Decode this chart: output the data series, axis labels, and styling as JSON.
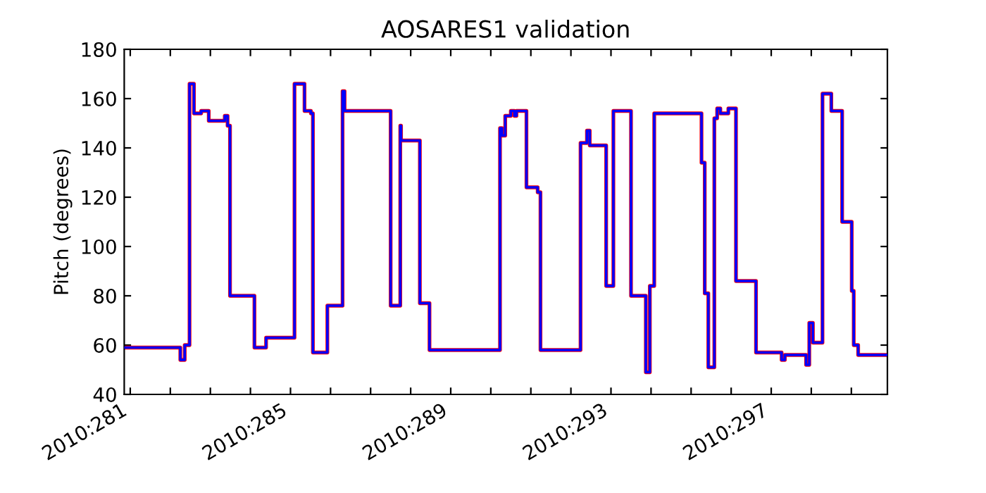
{
  "chart_data": {
    "type": "step",
    "title": "AOSARES1 validation",
    "ylabel": "Pitch (degrees)",
    "x": [
      "2010-10-07T20:24",
      "2010-10-09T06:00",
      "2010-10-09T08:38",
      "2010-10-09T11:31",
      "2010-10-09T14:10",
      "2010-10-09T18:29",
      "2010-10-09T23:02",
      "2010-10-10T08:38",
      "2010-10-10T10:19",
      "2010-10-10T11:46",
      "2010-10-11T02:24",
      "2010-10-11T09:22",
      "2010-10-12T02:24",
      "2010-10-12T08:24",
      "2010-10-12T12:14",
      "2010-10-12T13:26",
      "2010-10-12T22:05",
      "2010-10-13T07:12",
      "2010-10-13T08:24",
      "2010-10-14T12:00",
      "2010-10-14T17:46",
      "2010-10-14T18:14",
      "2010-10-15T05:31",
      "2010-10-15T11:17",
      "2010-10-17T05:31",
      "2010-10-17T06:43",
      "2010-10-17T08:38",
      "2010-10-17T12:00",
      "2010-10-17T14:10",
      "2010-10-17T15:22",
      "2010-10-17T21:22",
      "2010-10-18T04:05",
      "2010-10-18T05:46",
      "2010-10-19T05:46",
      "2010-10-19T09:36",
      "2010-10-19T11:17",
      "2010-10-19T21:07",
      "2010-10-20T01:26",
      "2010-10-20T12:00",
      "2010-10-20T20:53",
      "2010-10-20T23:17",
      "2010-10-21T01:55",
      "2010-10-22T06:14",
      "2010-10-22T08:10",
      "2010-10-22T10:19",
      "2010-10-22T13:55",
      "2010-10-22T15:36",
      "2010-10-22T17:31",
      "2010-10-22T22:19",
      "2010-10-23T02:53",
      "2010-10-23T14:53",
      "2010-10-24T06:14",
      "2010-10-24T08:10",
      "2010-10-24T20:53",
      "2010-10-24T22:48",
      "2010-10-25T00:58",
      "2010-10-25T06:43",
      "2010-10-25T12:00",
      "2010-10-25T18:29",
      "2010-10-26T00:14",
      "2010-10-26T01:26",
      "2010-10-26T04:05",
      "2010-10-26T21:36"
    ],
    "series": [
      {
        "color": "#ff0000",
        "values": [
          59,
          54,
          60,
          166,
          154,
          155,
          151,
          153,
          149,
          80,
          59,
          63,
          166,
          155,
          154,
          57,
          76,
          163,
          155,
          76,
          149,
          143,
          77,
          58,
          148,
          145,
          153,
          155,
          153,
          155,
          124,
          122,
          58,
          142,
          147,
          141,
          84,
          155,
          80,
          49,
          84,
          154,
          134,
          81,
          51,
          152,
          156,
          154,
          156,
          86,
          57,
          54,
          56,
          52,
          69,
          61,
          162,
          155,
          110,
          82,
          60,
          56,
          56
        ]
      },
      {
        "color": "#0000ff",
        "values": [
          59,
          54,
          60,
          166,
          154,
          155,
          151,
          153,
          149,
          80,
          59,
          63,
          166,
          155,
          154,
          57,
          76,
          163,
          155,
          76,
          149,
          143,
          77,
          58,
          148,
          145,
          153,
          155,
          153,
          155,
          124,
          122,
          58,
          142,
          147,
          141,
          84,
          155,
          80,
          49,
          84,
          154,
          134,
          81,
          51,
          152,
          156,
          154,
          156,
          86,
          57,
          54,
          56,
          52,
          69,
          61,
          162,
          155,
          110,
          82,
          60,
          56,
          56
        ]
      }
    ],
    "xlim": [
      "2010-10-07T20:24",
      "2010-10-26T21:36"
    ],
    "xticks": [
      {
        "value": "2010-10-08",
        "label": "2010:281"
      },
      {
        "value": "2010-10-09",
        "label": null
      },
      {
        "value": "2010-10-10",
        "label": null
      },
      {
        "value": "2010-10-11",
        "label": null
      },
      {
        "value": "2010-10-12",
        "label": "2010:285"
      },
      {
        "value": "2010-10-13",
        "label": null
      },
      {
        "value": "2010-10-14",
        "label": null
      },
      {
        "value": "2010-10-15",
        "label": null
      },
      {
        "value": "2010-10-16",
        "label": "2010:289"
      },
      {
        "value": "2010-10-17",
        "label": null
      },
      {
        "value": "2010-10-18",
        "label": null
      },
      {
        "value": "2010-10-19",
        "label": null
      },
      {
        "value": "2010-10-20",
        "label": "2010:293"
      },
      {
        "value": "2010-10-21",
        "label": null
      },
      {
        "value": "2010-10-22",
        "label": null
      },
      {
        "value": "2010-10-23",
        "label": null
      },
      {
        "value": "2010-10-24",
        "label": "2010:297"
      },
      {
        "value": "2010-10-25",
        "label": null
      },
      {
        "value": "2010-10-26",
        "label": null
      }
    ],
    "ylim": [
      40,
      180
    ],
    "yticks": [
      40,
      60,
      80,
      100,
      120,
      140,
      160,
      180
    ],
    "grid": false,
    "legend": false,
    "marker": "none",
    "line_style": "solid"
  }
}
